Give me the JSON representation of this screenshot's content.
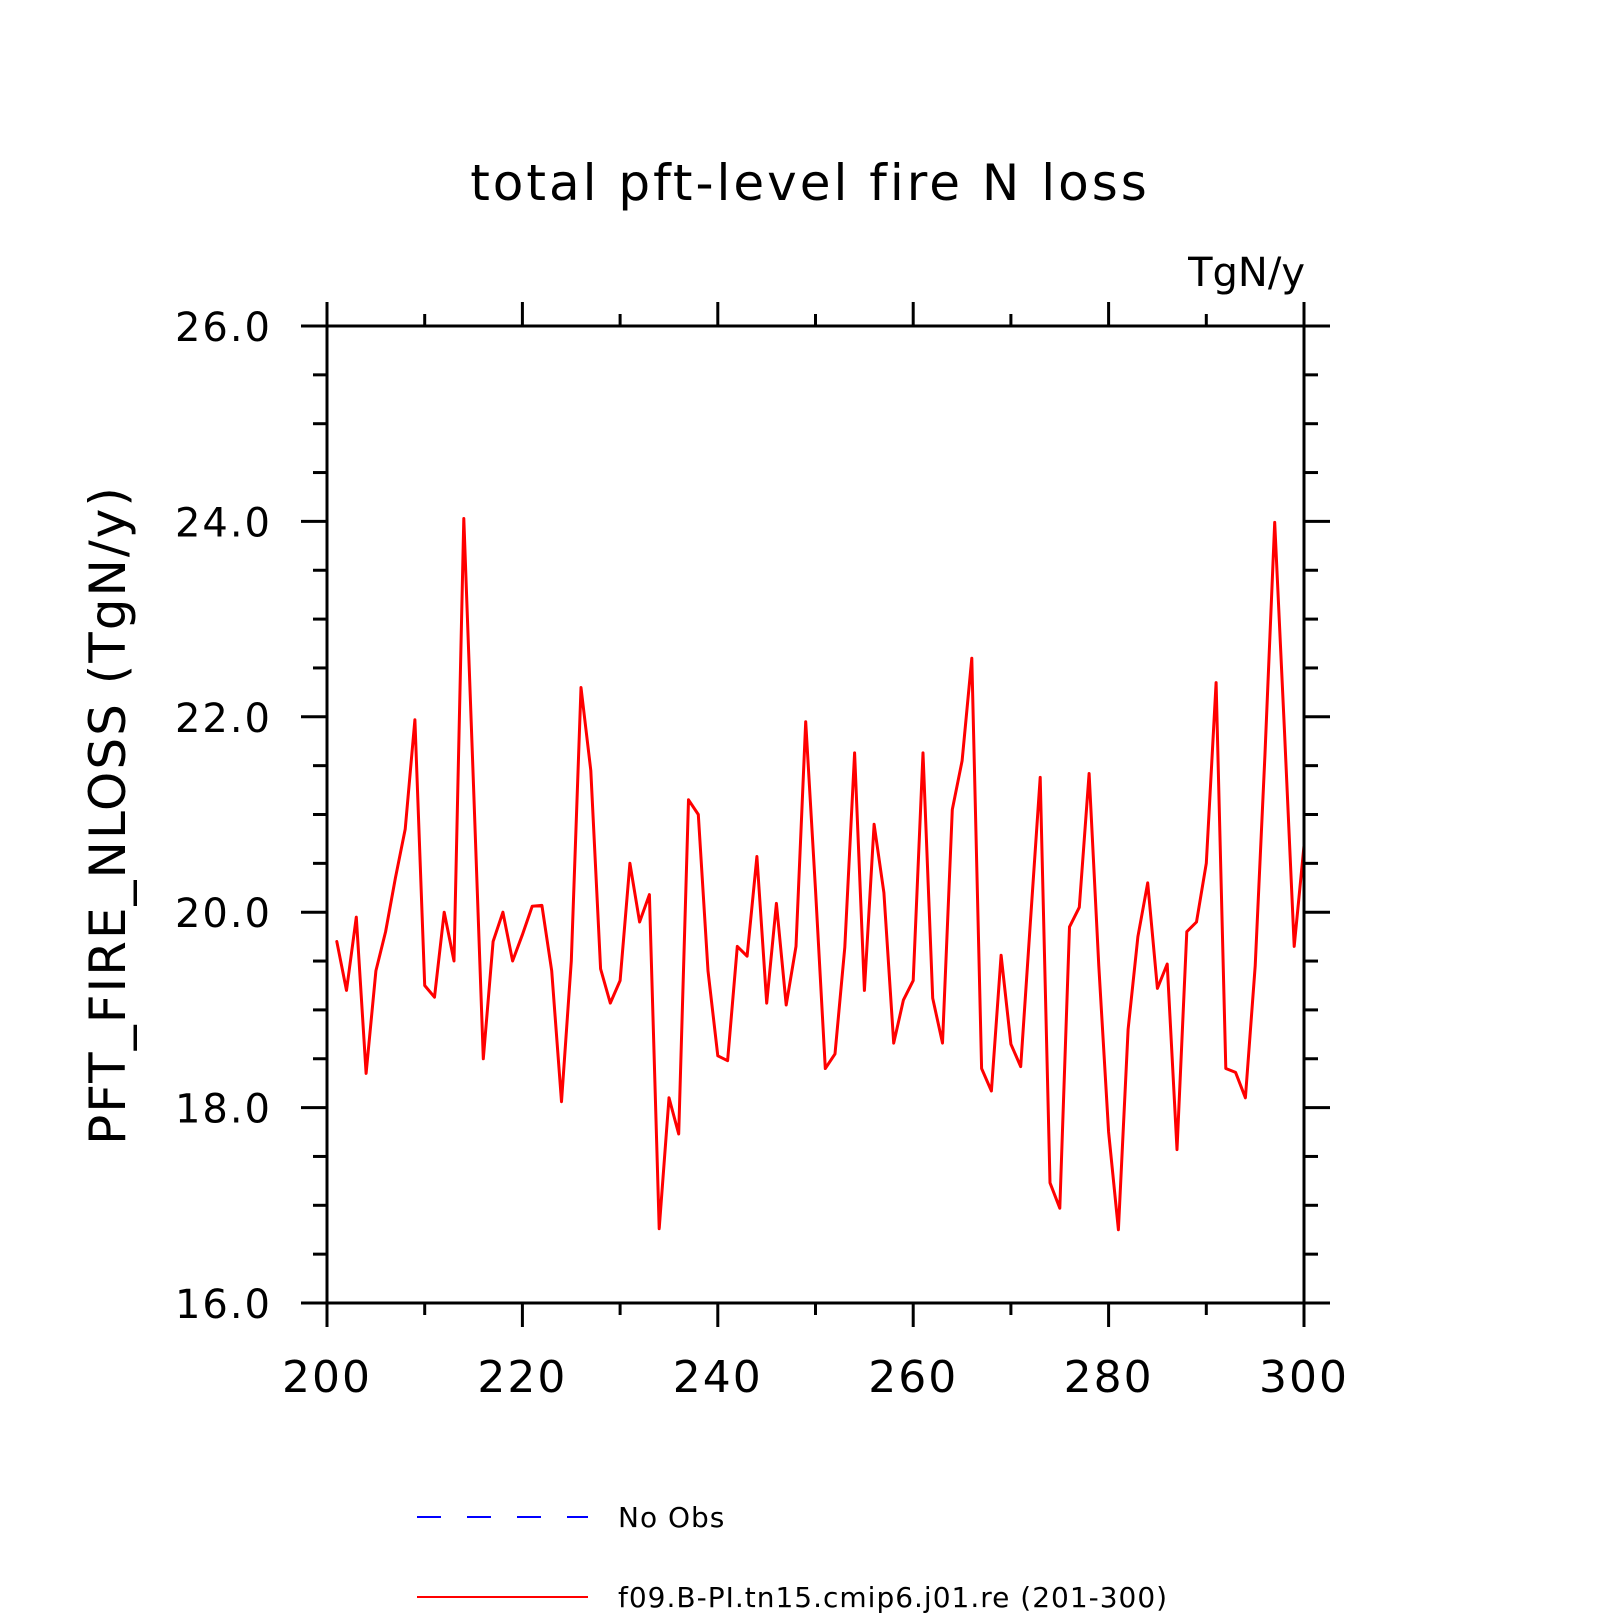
{
  "chart_data": {
    "type": "line",
    "title": "total pft-level fire N loss",
    "units": "TgN/y",
    "ylabel": "PFT_FIRE_NLOSS  (TgN/y)",
    "xlabel": "",
    "xlim": [
      200,
      300
    ],
    "ylim": [
      16.0,
      26.0
    ],
    "x_ticks": [
      "200",
      "220",
      "240",
      "260",
      "280",
      "300"
    ],
    "y_ticks": [
      "16.0",
      "18.0",
      "20.0",
      "22.0",
      "24.0",
      "26.0"
    ],
    "grid": false,
    "legend_position": "bottom",
    "legend": [
      {
        "label": "No Obs",
        "color": "#0000ff",
        "style": "dashed"
      },
      {
        "label": "f09.B-PI.tn15.cmip6.j01.re (201-300)",
        "color": "#ff0000",
        "style": "solid"
      }
    ],
    "series": [
      {
        "name": "f09.B-PI.tn15.cmip6.j01.re (201-300)",
        "color": "#ff0000",
        "x": [
          201,
          202,
          203,
          204,
          205,
          206,
          207,
          208,
          209,
          210,
          211,
          212,
          213,
          214,
          215,
          216,
          217,
          218,
          219,
          220,
          221,
          222,
          223,
          224,
          225,
          226,
          227,
          228,
          229,
          230,
          231,
          232,
          233,
          234,
          235,
          236,
          237,
          238,
          239,
          240,
          241,
          242,
          243,
          244,
          245,
          246,
          247,
          248,
          249,
          250,
          251,
          252,
          253,
          254,
          255,
          256,
          257,
          258,
          259,
          260,
          261,
          262,
          263,
          264,
          265,
          266,
          267,
          268,
          269,
          270,
          271,
          272,
          273,
          274,
          275,
          276,
          277,
          278,
          279,
          280,
          281,
          282,
          283,
          284,
          285,
          286,
          287,
          288,
          289,
          290,
          291,
          292,
          293,
          294,
          295,
          296,
          297,
          298,
          299,
          300
        ],
        "values": [
          19.7,
          19.2,
          19.95,
          18.35,
          19.4,
          19.8,
          20.35,
          20.85,
          21.97,
          19.25,
          19.13,
          20.0,
          19.5,
          24.03,
          21.3,
          18.5,
          19.7,
          20.0,
          19.5,
          19.77,
          20.06,
          20.07,
          19.4,
          18.06,
          19.5,
          22.3,
          21.45,
          19.42,
          19.07,
          19.3,
          20.5,
          19.9,
          20.18,
          16.76,
          18.1,
          17.73,
          21.15,
          21.0,
          19.4,
          18.53,
          18.48,
          19.65,
          19.55,
          20.57,
          19.07,
          20.09,
          19.05,
          19.65,
          21.95,
          20.23,
          18.4,
          18.55,
          19.64,
          21.63,
          19.2,
          20.9,
          20.2,
          18.66,
          19.1,
          19.3,
          21.63,
          19.12,
          18.66,
          21.05,
          21.55,
          22.6,
          18.4,
          18.17,
          19.56,
          18.65,
          18.42,
          19.9,
          21.38,
          17.23,
          16.97,
          19.85,
          20.05,
          21.42,
          19.45,
          17.75,
          16.75,
          18.8,
          19.75,
          20.3,
          19.22,
          19.47,
          17.57,
          19.8,
          19.9,
          20.5,
          22.35,
          18.4,
          18.36,
          18.1,
          19.45,
          21.6,
          23.99,
          21.85,
          19.65,
          20.68
        ]
      }
    ]
  }
}
